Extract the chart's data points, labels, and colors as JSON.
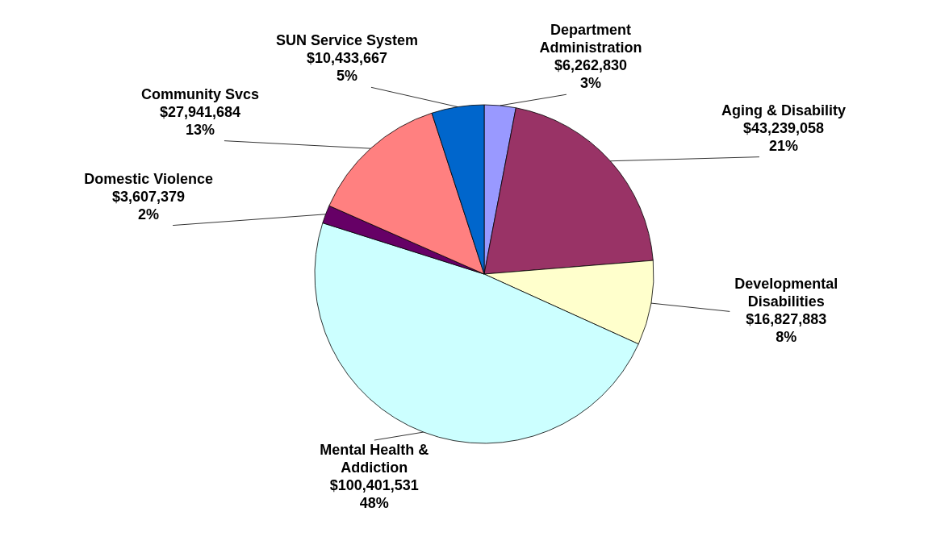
{
  "chart_data": {
    "type": "pie",
    "categories": [
      "Department Administration",
      "Aging & Disability",
      "Developmental Disabilities",
      "Mental Health & Addiction",
      "Domestic Violence",
      "Community Svcs",
      "SUN Service System"
    ],
    "values": [
      6262830,
      43239058,
      16827883,
      100401531,
      3607379,
      27941684,
      10433667
    ],
    "colors": [
      "#9999ff",
      "#993366",
      "#ffffcc",
      "#ccffff",
      "#660066",
      "#ff8080",
      "#0066cc"
    ],
    "value_labels": [
      "$6,262,830\n3%",
      "$43,239,058\n21%",
      "$16,827,883\n8%",
      "$100,401,531\n48%",
      "$3,607,379\n2%",
      "$27,941,684\n13%",
      "$10,433,667\n5%"
    ]
  }
}
